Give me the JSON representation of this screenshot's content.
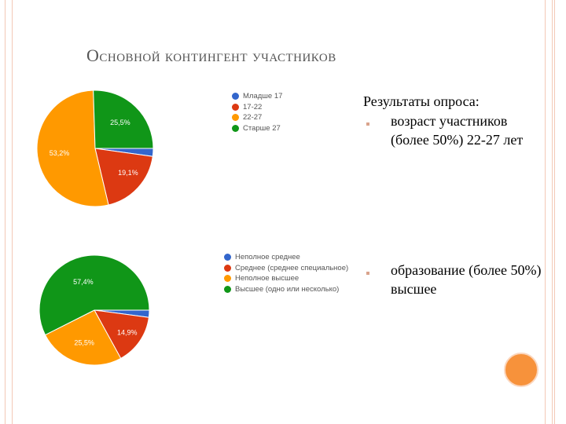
{
  "slide": {
    "title": "Основной контингент участников",
    "results_title": "Результаты опроса:",
    "bullets": [
      {
        "text": "возраст участников (более 50%) 22-27 лет"
      },
      {
        "text": "образование (более 50%) высшее"
      }
    ]
  },
  "chart_data": [
    {
      "type": "pie",
      "title": "",
      "legend_position": "right",
      "categories": [
        "Младше 17",
        "17-22",
        "22-27",
        "Старше 27"
      ],
      "values": [
        2.2,
        19.1,
        53.2,
        25.5
      ],
      "value_labels": [
        "",
        "19,1%",
        "53,2%",
        "25,5%"
      ],
      "colors": [
        "#3366cc",
        "#dc3912",
        "#ff9900",
        "#109618"
      ]
    },
    {
      "type": "pie",
      "title": "",
      "legend_position": "right",
      "categories": [
        "Неполное среднее",
        "Среднее (среднее специальное)",
        "Неполное высшее",
        "Высшее (одно или несколько)"
      ],
      "values": [
        2.1,
        14.9,
        25.5,
        57.4
      ],
      "value_labels": [
        "",
        "14,9%",
        "25,5%",
        "57,4%"
      ],
      "colors": [
        "#3366cc",
        "#dc3912",
        "#ff9900",
        "#109618"
      ]
    }
  ]
}
